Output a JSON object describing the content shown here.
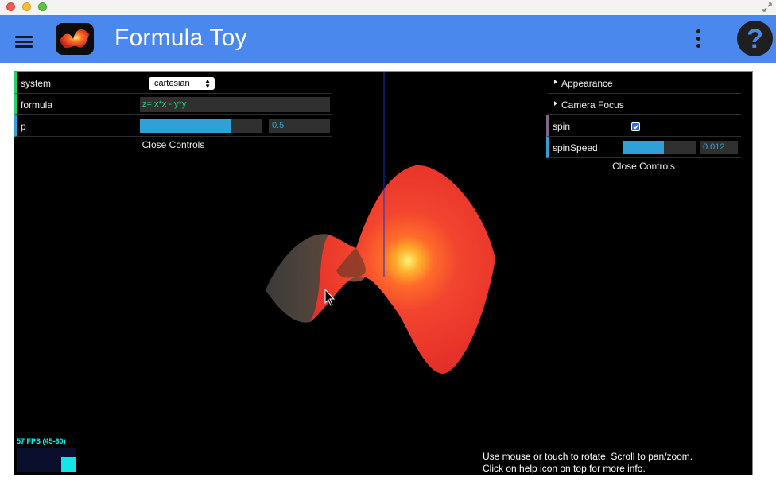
{
  "window": {
    "controls": [
      "close-icon",
      "minimize-icon",
      "zoom-icon"
    ],
    "resize_icon": "resize-icon"
  },
  "header": {
    "title": "Formula Toy",
    "menu_icon": "menu-icon",
    "more_icon": "more-vert-icon",
    "help_label": "?",
    "color": "#4a88ed"
  },
  "left_controls": {
    "system": {
      "label": "system",
      "value": "cartesian"
    },
    "formula": {
      "label": "formula",
      "value": "z= x*x - y*y"
    },
    "p": {
      "label": "p",
      "value": "0.5",
      "fill": 0.74
    },
    "close_label": "Close Controls"
  },
  "right_controls": {
    "appearance": {
      "label": "Appearance"
    },
    "camera_focus": {
      "label": "Camera Focus"
    },
    "spin": {
      "label": "spin",
      "checked": true
    },
    "spin_speed": {
      "label": "spinSpeed",
      "value": "0.012",
      "fill": 0.56
    },
    "close_label": "Close Controls"
  },
  "stats": {
    "fps": "57 FPS (45-60)"
  },
  "hint": {
    "line1": "Use mouse or touch to rotate. Scroll to pan/zoom.",
    "line2": "Click on help icon on top for more info."
  },
  "colors": {
    "string_accent": "#1ed36f",
    "number_accent": "#2fa1d6",
    "bool_accent": "#806787",
    "surface_red": "#e8332a",
    "surface_hot": "#fff27a"
  }
}
